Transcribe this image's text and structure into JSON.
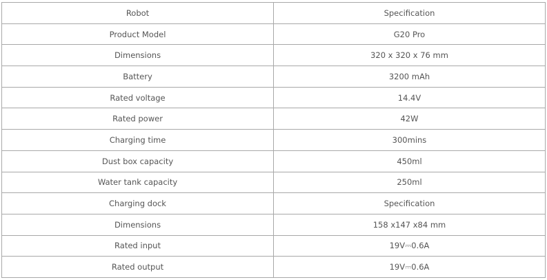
{
  "table": {
    "rows": [
      [
        "Robot",
        "Specification"
      ],
      [
        "Product Model",
        "G20 Pro"
      ],
      [
        "Dimensions",
        "320 x 320 x 76 mm"
      ],
      [
        "Battery",
        "3200 mAh"
      ],
      [
        "Rated voltage",
        "14.4V"
      ],
      [
        "Rated power",
        "42W"
      ],
      [
        "Charging time",
        "300mins"
      ],
      [
        "Dust box capacity",
        "450ml"
      ],
      [
        "Water tank capacity",
        "250ml"
      ],
      [
        "Charging dock",
        "Specification"
      ],
      [
        "Dimensions",
        "158 x147 x84 mm"
      ],
      [
        "Rated input",
        "19V⎓0.6A"
      ],
      [
        "Rated output",
        "19V⎓0.6A"
      ]
    ]
  }
}
